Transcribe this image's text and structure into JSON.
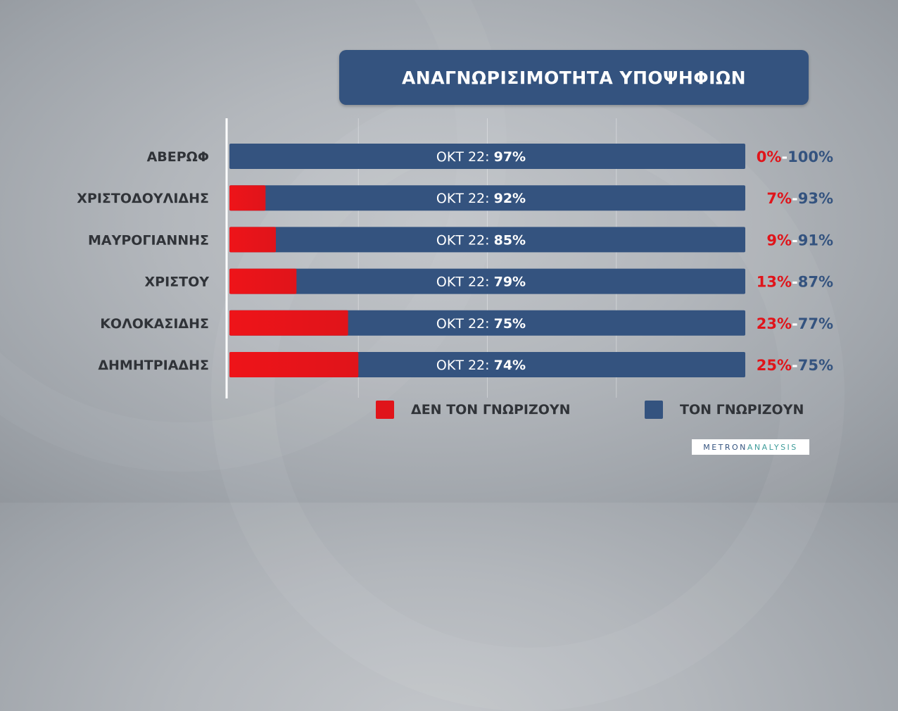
{
  "title": "ΑΝΑΓΝΩΡΙΣΙΜΟΤΗΤΑ ΥΠΟΨΗΦΙΩΝ",
  "brand": {
    "part1": "METRON",
    "part2": "ANALYSIS"
  },
  "legend": {
    "unknown": "ΔΕΝ ΤΟΝ ΓΝΩΡΙΖΟΥΝ",
    "known": "ΤΟΝ ΓΝΩΡΙΖΟΥΝ"
  },
  "colors": {
    "unknown": "#e0141a",
    "known": "#34537f",
    "bar_text": "#ffffff",
    "label_text": "#303338"
  },
  "chart_data": {
    "type": "bar",
    "orientation": "horizontal",
    "stacked": true,
    "categories": [
      "ΑΒΕΡΩΦ",
      "ΧΡΙΣΤΟΔΟΥΛΙΔΗΣ",
      "ΜΑΥΡΟΓΙΑΝΝΗΣ",
      "ΧΡΙΣΤΟΥ",
      "ΚΟΛΟΚΑΣΙΔΗΣ",
      "ΔΗΜΗΤΡΙΑΔΗΣ"
    ],
    "series": [
      {
        "name": "ΔΕΝ ΤΟΝ ΓΝΩΡΙΖΟΥΝ",
        "values": [
          0,
          7,
          9,
          13,
          23,
          25
        ]
      },
      {
        "name": "ΤΟΝ ΓΝΩΡΙΖΟΥΝ",
        "values": [
          100,
          93,
          91,
          87,
          77,
          75
        ]
      }
    ],
    "bar_label_prefix": "ΟΚΤ 22:",
    "previous_values": [
      97,
      92,
      85,
      79,
      75,
      74
    ],
    "xlim": [
      0,
      100
    ],
    "grid": true,
    "legend_position": "bottom"
  }
}
